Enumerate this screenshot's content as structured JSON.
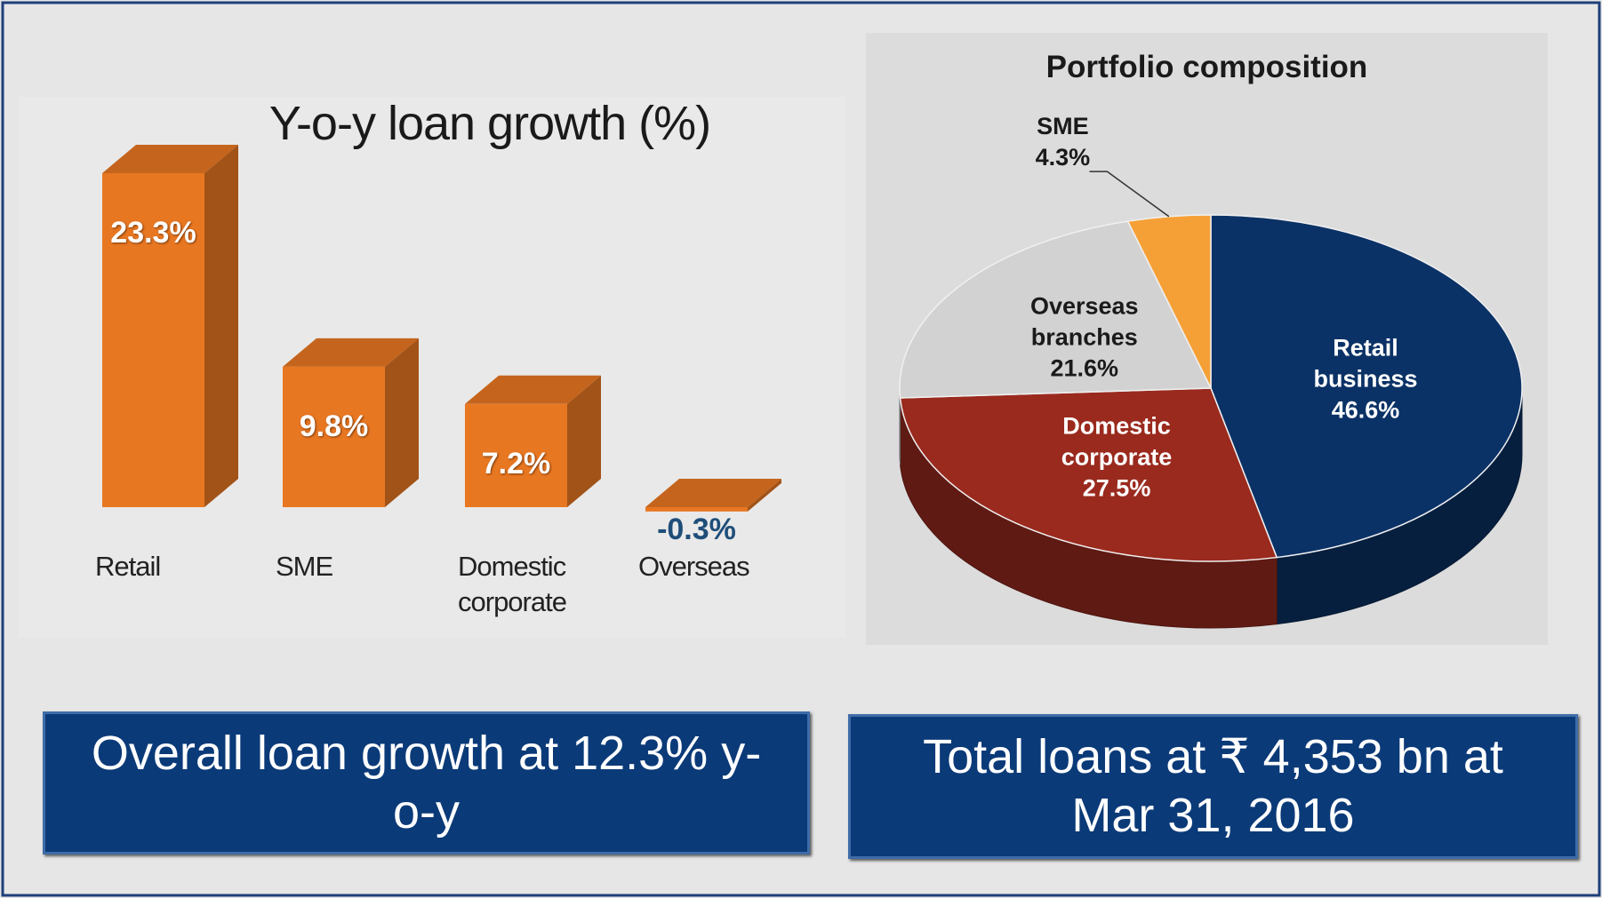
{
  "chart_data": [
    {
      "type": "bar",
      "title": "Y-o-y loan growth (%)",
      "categories": [
        "Retail",
        "SME",
        "Domestic corporate",
        "Overseas"
      ],
      "values": [
        23.3,
        9.8,
        7.2,
        -0.3
      ],
      "value_labels": [
        "23.3%",
        "9.8%",
        "7.2%",
        "-0.3%"
      ],
      "color": "#e87722"
    },
    {
      "type": "pie",
      "title": "Portfolio composition",
      "categories": [
        "Retail business",
        "Domestic corporate",
        "Overseas branches",
        "SME"
      ],
      "values": [
        46.6,
        27.5,
        21.6,
        4.3
      ],
      "value_labels": [
        "46.6%",
        "27.5%",
        "21.6%",
        "4.3%"
      ],
      "colors": [
        "#0b3266",
        "#9a2a1e",
        "#d2d2d2",
        "#f5a037"
      ]
    }
  ],
  "callouts": [
    "Overall loan growth at 12.3% y-o-y",
    "Total loans at ₹ 4,353 bn at Mar 31, 2016"
  ]
}
